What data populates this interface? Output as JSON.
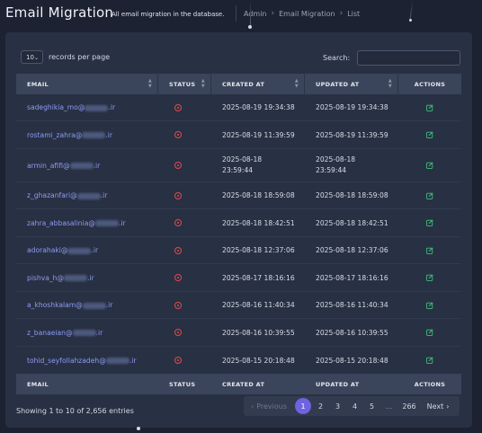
{
  "header": {
    "title": "Email Migration",
    "subtitle": "All email migration in the database.",
    "breadcrumb": [
      "Admin",
      "Email Migration",
      "List"
    ]
  },
  "controls": {
    "length_value": "10",
    "length_label": "records per page",
    "search_label": "Search:",
    "search_value": ""
  },
  "columns": {
    "email": "EMAIL",
    "status": "STATUS",
    "created": "CREATED AT",
    "updated": "UPDATED AT",
    "actions": "ACTIONS"
  },
  "rows": [
    {
      "email_local": "sadeghikia_mo@",
      "email_tld": ".ir",
      "created": "2025-08-19 19:34:38",
      "updated": "2025-08-19 19:34:38"
    },
    {
      "email_local": "rostami_zahra@",
      "email_tld": ".ir",
      "created": "2025-08-19 11:39:59",
      "updated": "2025-08-19 11:39:59"
    },
    {
      "email_local": "armin_afifi@",
      "email_tld": ".ir",
      "created": "2025-08-18 23:59:44",
      "updated": "2025-08-18 23:59:44"
    },
    {
      "email_local": "z_ghazanfari@",
      "email_tld": ".ir",
      "created": "2025-08-18 18:59:08",
      "updated": "2025-08-18 18:59:08"
    },
    {
      "email_local": "zahra_abbasalinia@",
      "email_tld": ".ir",
      "created": "2025-08-18 18:42:51",
      "updated": "2025-08-18 18:42:51"
    },
    {
      "email_local": "adorahaki@",
      "email_tld": ".ir",
      "created": "2025-08-18 12:37:06",
      "updated": "2025-08-18 12:37:06"
    },
    {
      "email_local": "pishva_h@",
      "email_tld": ".ir",
      "created": "2025-08-17 18:16:16",
      "updated": "2025-08-17 18:16:16"
    },
    {
      "email_local": "a_khoshkalam@",
      "email_tld": ".ir",
      "created": "2025-08-16 11:40:34",
      "updated": "2025-08-16 11:40:34"
    },
    {
      "email_local": "z_banaeian@",
      "email_tld": ".ir",
      "created": "2025-08-16 10:39:55",
      "updated": "2025-08-16 10:39:55"
    },
    {
      "email_local": "tohid_seyfollahzadeh@",
      "email_tld": ".ir",
      "created": "2025-08-15 20:18:48",
      "updated": "2025-08-15 20:18:48"
    }
  ],
  "footer": {
    "info": "Showing 1 to 10 of 2,656 entries",
    "pagination": {
      "previous": "Previous",
      "pages": [
        "1",
        "2",
        "3",
        "4",
        "5"
      ],
      "ellipsis": "…",
      "last": "266",
      "next": "Next",
      "active": "1"
    }
  },
  "colors": {
    "background": "#1c2231",
    "card": "#283043",
    "header_row": "#3a445a",
    "link": "#8e9cf4",
    "status_inactive": "#e14c4c",
    "action_edit": "#3fc07a",
    "pagination_active": "#6f63e0"
  },
  "icons": {
    "status": "circle-x-icon",
    "action": "edit-icon",
    "sort": "sort-icon"
  }
}
